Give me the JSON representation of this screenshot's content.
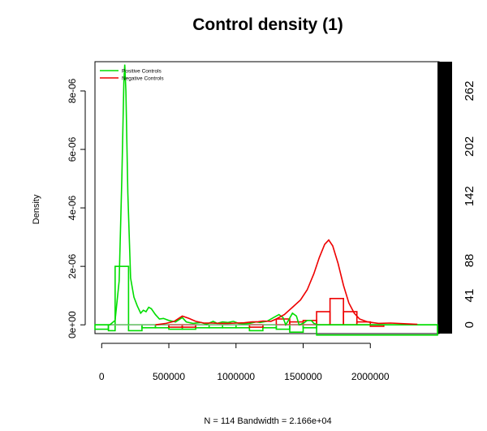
{
  "chart_data": {
    "type": "line",
    "title": "Control density (1)",
    "ylabel": "Density",
    "xlabel_bottom": "N = 114   Bandwidth = 2.166e+04",
    "xlim": [
      -50000,
      2500000
    ],
    "ylim": [
      -3e-07,
      9e-06
    ],
    "x_ticks": [
      0,
      500000,
      1000000,
      1500000,
      2000000
    ],
    "x_tick_labels": [
      "0",
      "500000",
      "1000000",
      "1500000",
      "2000000"
    ],
    "y_ticks": [
      0,
      2e-06,
      4e-06,
      6e-06,
      8e-06
    ],
    "y_tick_labels": [
      "0e+00",
      "2e-06",
      "4e-06",
      "6e-06",
      "8e-06"
    ],
    "right_axis_ticks": [
      0,
      41,
      88,
      142,
      202,
      262
    ],
    "right_axis_tick_labels": [
      "0",
      "41",
      "88",
      "142",
      "202",
      "262"
    ],
    "right_axis_values_at_density": [
      0,
      1e-06,
      2.2e-06,
      4.4e-06,
      6.1e-06,
      8e-06
    ],
    "legend": {
      "position": "top-left",
      "entries": [
        {
          "label": "Positive Controls",
          "color": "#00dd00"
        },
        {
          "label": "Negative Controls",
          "color": "#ee0000"
        }
      ]
    },
    "series": [
      {
        "name": "Positive Controls",
        "color": "#00dd00",
        "points": [
          [
            -50000,
            0.0
          ],
          [
            60000,
            0.0
          ],
          [
            100000,
            1.5e-07
          ],
          [
            130000,
            1.5e-06
          ],
          [
            150000,
            5e-06
          ],
          [
            165000,
            8.3e-06
          ],
          [
            172000,
            8.9e-06
          ],
          [
            180000,
            8e-06
          ],
          [
            195000,
            4.5e-06
          ],
          [
            215000,
            1.6e-06
          ],
          [
            240000,
            9.5e-07
          ],
          [
            265000,
            6.5e-07
          ],
          [
            290000,
            4e-07
          ],
          [
            310000,
            5e-07
          ],
          [
            330000,
            4.5e-07
          ],
          [
            350000,
            6e-07
          ],
          [
            370000,
            5.5e-07
          ],
          [
            400000,
            3.5e-07
          ],
          [
            430000,
            2e-07
          ],
          [
            460000,
            2.2e-07
          ],
          [
            500000,
            1.5e-07
          ],
          [
            550000,
            1e-07
          ],
          [
            600000,
            2.5e-07
          ],
          [
            630000,
            1e-07
          ],
          [
            680000,
            5e-08
          ],
          [
            740000,
            8e-08
          ],
          [
            780000,
            2e-08
          ],
          [
            830000,
            1.2e-07
          ],
          [
            860000,
            5e-08
          ],
          [
            900000,
            1e-07
          ],
          [
            940000,
            8e-08
          ],
          [
            980000,
            1.2e-07
          ],
          [
            1020000,
            5e-08
          ],
          [
            1060000,
            4e-08
          ],
          [
            1100000,
            5e-08
          ],
          [
            1150000,
            1e-07
          ],
          [
            1180000,
            8e-08
          ],
          [
            1230000,
            1.2e-07
          ],
          [
            1280000,
            2.5e-07
          ],
          [
            1320000,
            3.5e-07
          ],
          [
            1350000,
            2.5e-07
          ],
          [
            1370000,
            0.0
          ],
          [
            1390000,
            1.5e-07
          ],
          [
            1420000,
            4e-07
          ],
          [
            1450000,
            3e-07
          ],
          [
            1470000,
            0.0
          ],
          [
            1500000,
            5e-08
          ],
          [
            1530000,
            1.5e-07
          ],
          [
            1560000,
            1.5e-07
          ],
          [
            1580000,
            5e-08
          ],
          [
            1610000,
            0.0
          ],
          [
            2500000,
            0.0
          ]
        ]
      },
      {
        "name": "Negative Controls",
        "color": "#ee0000",
        "points": [
          [
            400000,
            0.0
          ],
          [
            480000,
            5e-08
          ],
          [
            540000,
            1.2e-07
          ],
          [
            600000,
            3e-07
          ],
          [
            650000,
            2.2e-07
          ],
          [
            700000,
            1.2e-07
          ],
          [
            760000,
            6e-08
          ],
          [
            820000,
            6e-08
          ],
          [
            880000,
            5e-08
          ],
          [
            940000,
            5e-08
          ],
          [
            1000000,
            6e-08
          ],
          [
            1060000,
            7e-08
          ],
          [
            1120000,
            1e-07
          ],
          [
            1160000,
            1e-07
          ],
          [
            1200000,
            1.3e-07
          ],
          [
            1260000,
            1.2e-07
          ],
          [
            1300000,
            2e-07
          ],
          [
            1360000,
            3.5e-07
          ],
          [
            1420000,
            6e-07
          ],
          [
            1480000,
            8.5e-07
          ],
          [
            1530000,
            1.2e-06
          ],
          [
            1580000,
            1.75e-06
          ],
          [
            1620000,
            2.3e-06
          ],
          [
            1660000,
            2.75e-06
          ],
          [
            1690000,
            2.9e-06
          ],
          [
            1720000,
            2.7e-06
          ],
          [
            1760000,
            2.1e-06
          ],
          [
            1800000,
            1.35e-06
          ],
          [
            1840000,
            7.5e-07
          ],
          [
            1880000,
            4e-07
          ],
          [
            1920000,
            2e-07
          ],
          [
            1980000,
            1e-07
          ],
          [
            2060000,
            5e-08
          ],
          [
            2150000,
            6e-08
          ],
          [
            2250000,
            4e-08
          ],
          [
            2350000,
            2e-08
          ]
        ]
      }
    ],
    "histograms": [
      {
        "name": "Positive Controls",
        "color": "#00dd00",
        "bins": [
          [
            -50000,
            50000,
            -1.5e-07
          ],
          [
            50000,
            100000,
            -2e-07
          ],
          [
            100000,
            200000,
            2e-06
          ],
          [
            200000,
            300000,
            -2e-07
          ],
          [
            300000,
            400000,
            -1e-07
          ],
          [
            400000,
            500000,
            -1e-07
          ],
          [
            500000,
            600000,
            -1.5e-07
          ],
          [
            600000,
            700000,
            -1.5e-07
          ],
          [
            700000,
            800000,
            -1e-07
          ],
          [
            800000,
            900000,
            -1e-07
          ],
          [
            900000,
            1000000,
            -1e-07
          ],
          [
            1000000,
            1100000,
            -1e-07
          ],
          [
            1100000,
            1200000,
            -2e-07
          ],
          [
            1200000,
            1300000,
            -1e-07
          ],
          [
            1300000,
            1400000,
            -1.5e-07
          ],
          [
            1400000,
            1500000,
            -2.5e-07
          ],
          [
            1500000,
            1600000,
            -1e-07
          ],
          [
            1600000,
            2500000,
            -3.5e-07
          ]
        ]
      },
      {
        "name": "Negative Controls",
        "color": "#ee0000",
        "bins": [
          [
            500000,
            600000,
            -8e-08
          ],
          [
            600000,
            700000,
            -8e-08
          ],
          [
            1100000,
            1200000,
            -8e-08
          ],
          [
            1300000,
            1400000,
            2e-07
          ],
          [
            1400000,
            1500000,
            1e-07
          ],
          [
            1500000,
            1600000,
            1.5e-07
          ],
          [
            1600000,
            1700000,
            4.5e-07
          ],
          [
            1700000,
            1800000,
            9e-07
          ],
          [
            1800000,
            1900000,
            4.5e-07
          ],
          [
            1900000,
            2000000,
            1e-07
          ],
          [
            2000000,
            2100000,
            -5e-08
          ]
        ]
      }
    ],
    "zero_line_color": "#aaaaaa"
  }
}
